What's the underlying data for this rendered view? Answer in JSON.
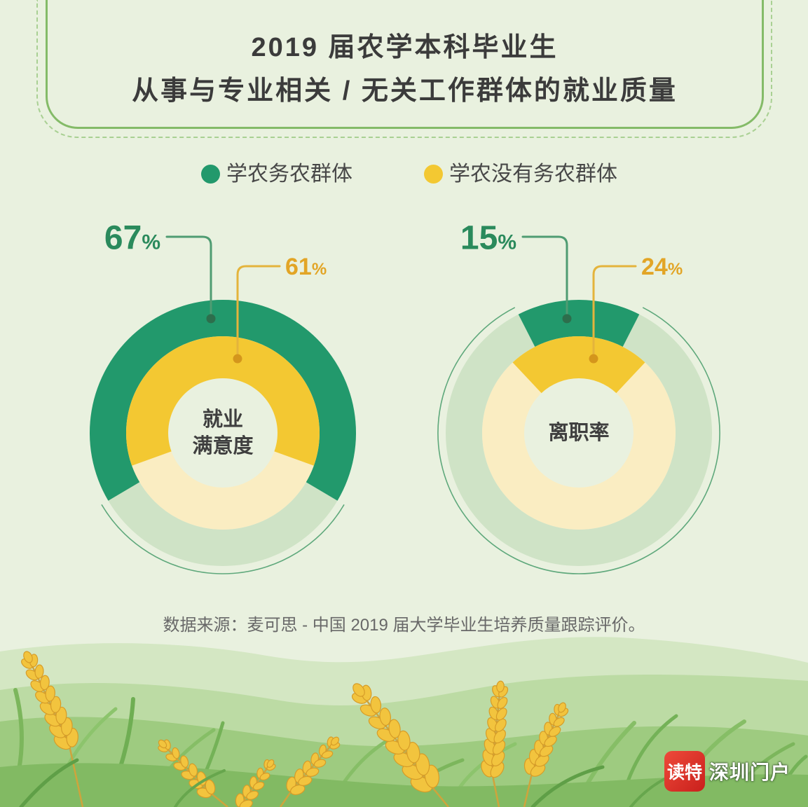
{
  "title": {
    "line1": "2019 届农学本科毕业生",
    "line2": "从事与专业相关 / 无关工作群体的就业质量"
  },
  "chart_data": {
    "type": "pie",
    "unit": "%",
    "legend": "top",
    "categories": [
      "就业\n满意度",
      "离职率"
    ],
    "series": [
      {
        "name": "学农务农群体",
        "values": [
          67,
          15
        ],
        "color": "#22996c",
        "track_color": "#cfe3c6",
        "label_color": "#2a8a5c"
      },
      {
        "name": "学农没有务农群体",
        "values": [
          61,
          24
        ],
        "color": "#f3c832",
        "track_color": "#faedc2",
        "label_color": "#e2a526"
      }
    ]
  },
  "source": "数据来源：麦可思 - 中国 2019 届大学毕业生培养质量跟踪评价。",
  "logo": {
    "badge": "读特",
    "text": "深圳门户"
  }
}
